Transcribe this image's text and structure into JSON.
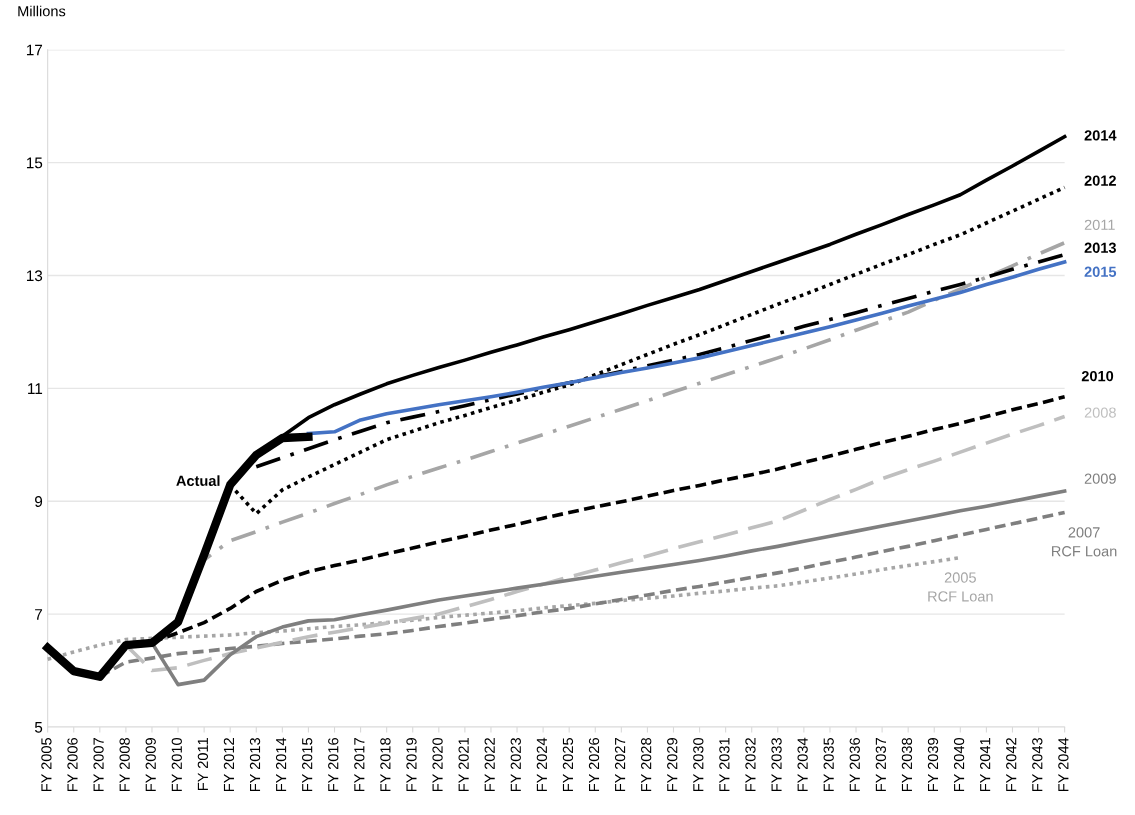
{
  "chart_data": {
    "type": "line",
    "ylabel": "Millions",
    "ylim": [
      5,
      17
    ],
    "yticks": [
      5,
      7,
      9,
      11,
      13,
      15,
      17
    ],
    "categories": [
      "FY 2005",
      "FY 2006",
      "FY 2007",
      "FY 2008",
      "FY 2009",
      "FY 2010",
      "FY 2011",
      "FY 2012",
      "FY 2013",
      "FY 2014",
      "FY 2015",
      "FY 2016",
      "FY 2017",
      "FY 2018",
      "FY 2019",
      "FY 2020",
      "FY 2021",
      "FY 2022",
      "FY 2023",
      "FY 2024",
      "FY 2025",
      "FY 2026",
      "FY 2027",
      "FY 2028",
      "FY 2029",
      "FY 2030",
      "FY 2031",
      "FY 2032",
      "FY 2033",
      "FY 2034",
      "FY 2035",
      "FY 2036",
      "FY 2037",
      "FY 2038",
      "FY 2039",
      "FY 2040",
      "FY 2041",
      "FY 2042",
      "FY 2043",
      "FY 2044"
    ],
    "grid": "y",
    "legend": false,
    "marker": "none",
    "series": [
      {
        "name": "2005\nRCF Loan",
        "color": "#a6a6a6",
        "line_style": "dotted",
        "values": [
          6.2,
          6.33,
          6.45,
          6.55,
          6.57,
          6.59,
          6.61,
          6.63,
          6.67,
          6.7,
          6.74,
          6.78,
          6.81,
          6.85,
          6.89,
          6.94,
          6.98,
          7.02,
          7.06,
          7.11,
          7.15,
          7.19,
          7.24,
          7.28,
          7.32,
          7.37,
          7.41,
          7.46,
          7.5,
          7.57,
          7.64,
          7.71,
          7.79,
          7.86,
          7.93,
          8.0,
          null,
          null,
          null,
          null
        ]
      },
      {
        "name": "2007\nRCF Loan",
        "color": "#7f7f7f",
        "line_style": "dashed",
        "values": [
          null,
          null,
          5.89,
          6.15,
          6.22,
          6.3,
          6.34,
          6.39,
          6.43,
          6.48,
          6.52,
          6.56,
          6.61,
          6.65,
          6.71,
          6.78,
          6.84,
          6.91,
          6.97,
          7.04,
          7.1,
          7.18,
          7.26,
          7.34,
          7.42,
          7.49,
          7.57,
          7.65,
          7.73,
          7.82,
          7.92,
          8.01,
          8.11,
          8.2,
          8.3,
          8.4,
          8.5,
          8.6,
          8.7,
          8.8
        ]
      },
      {
        "name": "2008",
        "color": "#bfbfbf",
        "line_style": "longdash",
        "values": [
          null,
          null,
          null,
          6.45,
          6.0,
          6.05,
          6.18,
          6.3,
          6.4,
          6.5,
          6.6,
          6.68,
          6.76,
          6.84,
          6.92,
          7.0,
          7.13,
          7.26,
          7.4,
          7.53,
          7.66,
          7.78,
          7.91,
          8.03,
          8.16,
          8.28,
          8.4,
          8.53,
          8.65,
          8.84,
          9.03,
          9.21,
          9.4,
          9.56,
          9.71,
          9.87,
          10.03,
          10.19,
          10.34,
          10.5
        ]
      },
      {
        "name": "2009",
        "color": "#7f7f7f",
        "line_style": "solid",
        "values": [
          null,
          null,
          null,
          6.45,
          6.49,
          5.75,
          5.83,
          6.28,
          6.6,
          6.77,
          6.88,
          6.9,
          6.99,
          7.07,
          7.16,
          7.25,
          7.32,
          7.39,
          7.46,
          7.53,
          7.6,
          7.67,
          7.74,
          7.81,
          7.88,
          7.95,
          8.03,
          8.12,
          8.2,
          8.29,
          8.38,
          8.47,
          8.56,
          8.65,
          8.74,
          8.83,
          8.91,
          9.0,
          9.09,
          9.18
        ]
      },
      {
        "name": "2010",
        "color": "#000000",
        "line_style": "dashed",
        "values": [
          null,
          null,
          null,
          null,
          6.5,
          6.67,
          6.85,
          7.1,
          7.4,
          7.6,
          7.75,
          7.86,
          7.96,
          8.07,
          8.17,
          8.28,
          8.38,
          8.49,
          8.59,
          8.7,
          8.8,
          8.9,
          8.99,
          9.09,
          9.19,
          9.28,
          9.38,
          9.47,
          9.57,
          9.69,
          9.8,
          9.92,
          10.04,
          10.15,
          10.27,
          10.38,
          10.5,
          10.62,
          10.73,
          10.85
        ]
      },
      {
        "name": "2011",
        "color": "#a6a6a6",
        "line_style": "dashdot",
        "values": [
          null,
          null,
          null,
          null,
          null,
          6.86,
          7.96,
          8.3,
          8.46,
          8.63,
          8.79,
          8.96,
          9.12,
          9.29,
          9.44,
          9.59,
          9.73,
          9.88,
          10.03,
          10.18,
          10.33,
          10.48,
          10.63,
          10.78,
          10.94,
          11.09,
          11.24,
          11.39,
          11.54,
          11.7,
          11.86,
          12.03,
          12.19,
          12.35,
          12.56,
          12.76,
          12.97,
          13.17,
          13.38,
          13.58
        ]
      },
      {
        "name": "2012",
        "color": "#000000",
        "line_style": "dotted",
        "values": [
          null,
          null,
          null,
          null,
          null,
          null,
          null,
          9.29,
          8.78,
          9.2,
          9.43,
          9.65,
          9.87,
          10.09,
          10.24,
          10.39,
          10.52,
          10.66,
          10.79,
          10.93,
          11.06,
          11.24,
          11.42,
          11.6,
          11.78,
          11.95,
          12.13,
          12.31,
          12.49,
          12.66,
          12.84,
          13.02,
          13.2,
          13.37,
          13.55,
          13.72,
          13.93,
          14.14,
          14.35,
          14.56
        ]
      },
      {
        "name": "2013",
        "color": "#000000",
        "line_style": "dashdot",
        "values": [
          null,
          null,
          null,
          null,
          null,
          null,
          null,
          null,
          9.61,
          9.77,
          9.93,
          10.09,
          10.24,
          10.39,
          10.49,
          10.59,
          10.69,
          10.8,
          10.9,
          11.0,
          11.1,
          11.2,
          11.3,
          11.4,
          11.5,
          11.6,
          11.72,
          11.85,
          11.97,
          12.1,
          12.22,
          12.34,
          12.47,
          12.59,
          12.72,
          12.84,
          12.97,
          13.11,
          13.24,
          13.37
        ]
      },
      {
        "name": "2015",
        "color": "#4472c4",
        "line_style": "solid",
        "values": [
          null,
          null,
          null,
          null,
          null,
          null,
          null,
          null,
          null,
          null,
          10.2,
          10.23,
          10.44,
          10.55,
          10.63,
          10.71,
          10.78,
          10.85,
          10.93,
          11.02,
          11.1,
          11.19,
          11.28,
          11.36,
          11.45,
          11.54,
          11.65,
          11.76,
          11.87,
          11.98,
          12.09,
          12.21,
          12.33,
          12.46,
          12.58,
          12.7,
          12.84,
          12.97,
          13.11,
          13.24
        ]
      },
      {
        "name": "2014",
        "color": "#000000",
        "line_style": "solid",
        "values": [
          null,
          null,
          null,
          null,
          null,
          null,
          null,
          null,
          9.82,
          10.15,
          10.48,
          10.71,
          10.9,
          11.08,
          11.23,
          11.37,
          11.5,
          11.64,
          11.77,
          11.91,
          12.04,
          12.18,
          12.32,
          12.47,
          12.61,
          12.75,
          12.91,
          13.07,
          13.23,
          13.39,
          13.55,
          13.73,
          13.9,
          14.08,
          14.25,
          14.43,
          14.69,
          14.94,
          15.2,
          15.46
        ]
      },
      {
        "name": "Actual",
        "color": "#000000",
        "line_style": "solid",
        "values": [
          6.4,
          5.99,
          5.89,
          6.45,
          6.49,
          6.86,
          8.05,
          9.29,
          9.82,
          10.12,
          10.14,
          null,
          null,
          null,
          null,
          null,
          null,
          null,
          null,
          null,
          null,
          null,
          null,
          null,
          null,
          null,
          null,
          null,
          null,
          null,
          null,
          null,
          null,
          null,
          null,
          null,
          null,
          null,
          null,
          null
        ]
      }
    ]
  }
}
